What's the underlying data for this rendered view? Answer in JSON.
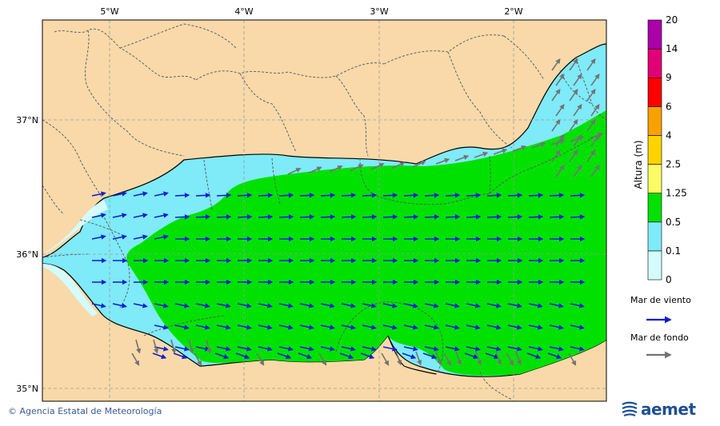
{
  "map": {
    "lon_ticks": [
      "5°W",
      "4°W",
      "3°W",
      "2°W"
    ],
    "lat_ticks": [
      "37°N",
      "36°N",
      "35°N"
    ],
    "colors": {
      "land": "#f9d9a9",
      "sea_0_01": "#d4fcfc",
      "sea_01_05": "#7feaf8",
      "sea_05_125": "#00e100",
      "wind_arrow": "#0a1fd6",
      "swell_arrow": "#737373"
    }
  },
  "colorbar": {
    "title": "Altura (m)",
    "levels": [
      "0",
      "0.1",
      "0.5",
      "1.25",
      "2.5",
      "4",
      "6",
      "9",
      "14",
      "20"
    ],
    "colors": [
      "#d4fcfc",
      "#7feaf8",
      "#00e100",
      "#fbfb64",
      "#fdd400",
      "#f8a100",
      "#fd0000",
      "#e10075",
      "#aa00aa"
    ]
  },
  "legend": {
    "wind_label": "Mar de viento",
    "swell_label": "Mar de fondo"
  },
  "footer": {
    "credit": "Agencia Estatal de Meteorología",
    "logo_text": "aemet"
  }
}
